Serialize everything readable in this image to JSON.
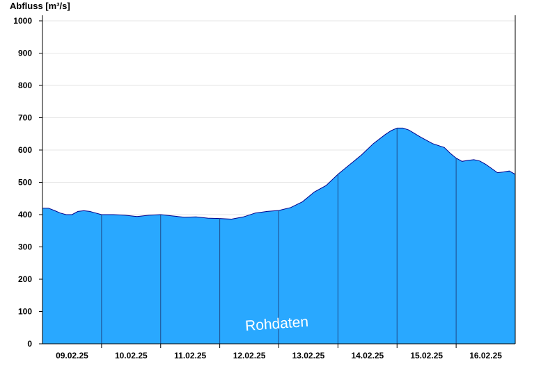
{
  "chart_data": {
    "type": "area",
    "ylabel": "Abfluss [m³/s]",
    "ylim": [
      0,
      1020
    ],
    "yticks": [
      0,
      100,
      200,
      300,
      400,
      500,
      600,
      700,
      800,
      900,
      1000
    ],
    "xlim": [
      0,
      8
    ],
    "day_boundaries": [
      1,
      2,
      3,
      4,
      5,
      6,
      7
    ],
    "xtick_labels": [
      "09.02.25",
      "10.02.25",
      "11.02.25",
      "12.02.25",
      "13.02.25",
      "14.02.25",
      "15.02.25",
      "16.02.25"
    ],
    "watermark": "Rohdaten",
    "colors": {
      "fill": "#29a8ff",
      "line": "#00008b",
      "grid": "#e6e6e6"
    },
    "grid": true,
    "series": [
      {
        "x": [
          0,
          0.1,
          0.2,
          0.3,
          0.4,
          0.5,
          0.6,
          0.7,
          0.8,
          0.9,
          1.0,
          1.2,
          1.4,
          1.6,
          1.8,
          2.0,
          2.2,
          2.4,
          2.6,
          2.8,
          3.0,
          3.2,
          3.4,
          3.6,
          3.8,
          4.0,
          4.2,
          4.4,
          4.6,
          4.8,
          5.0,
          5.2,
          5.4,
          5.6,
          5.8,
          5.9,
          6.0,
          6.1,
          6.2,
          6.4,
          6.6,
          6.8,
          6.9,
          7.0,
          7.1,
          7.2,
          7.3,
          7.4,
          7.5,
          7.6,
          7.7,
          7.8,
          7.9,
          8.0
        ],
        "y": [
          420,
          420,
          413,
          405,
          400,
          400,
          410,
          412,
          410,
          405,
          400,
          400,
          398,
          394,
          398,
          400,
          396,
          392,
          393,
          389,
          388,
          386,
          393,
          405,
          410,
          413,
          422,
          440,
          470,
          490,
          525,
          555,
          585,
          620,
          648,
          660,
          668,
          668,
          662,
          640,
          620,
          608,
          590,
          575,
          565,
          568,
          570,
          566,
          556,
          543,
          530,
          532,
          535,
          525
        ]
      }
    ]
  }
}
